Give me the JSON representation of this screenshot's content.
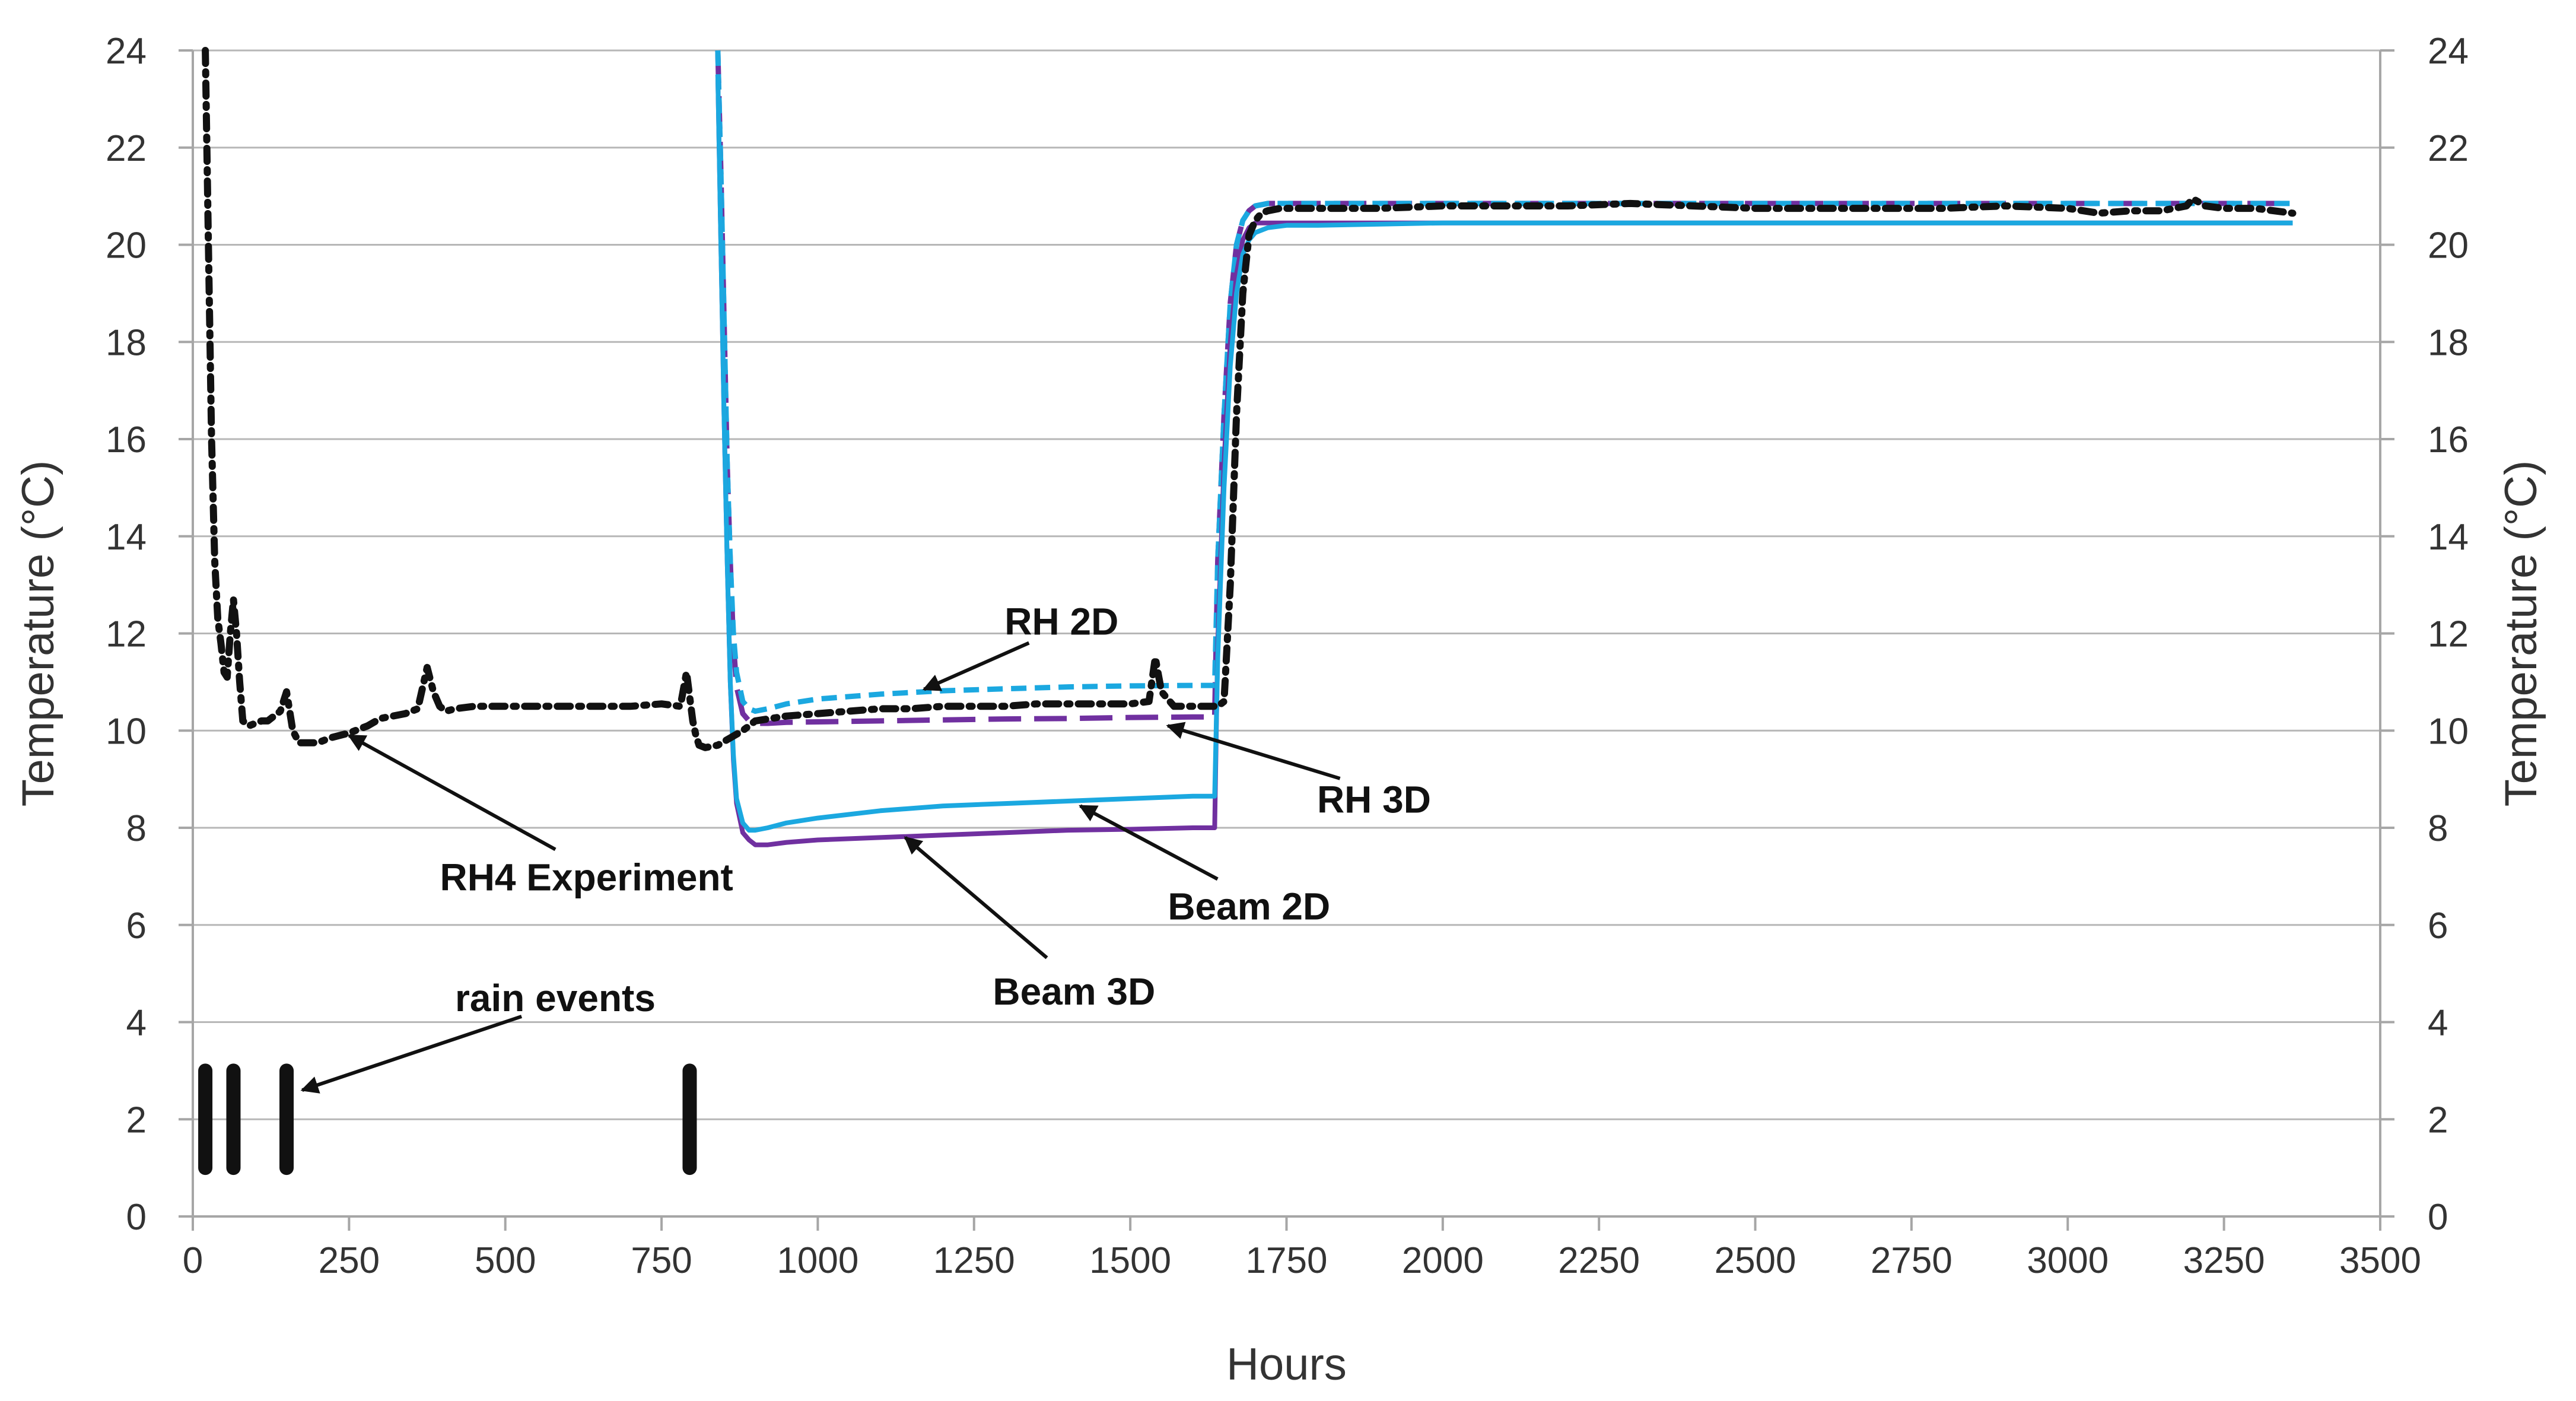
{
  "chart_data": {
    "type": "line",
    "title": "",
    "xlabel": "Hours",
    "ylabel_left": "Temperature (°C)",
    "ylabel_right": "Temperature (°C)",
    "xlim": [
      0,
      3500
    ],
    "ylim": [
      0,
      24
    ],
    "x_ticks": [
      0,
      250,
      500,
      750,
      1000,
      1250,
      1500,
      1750,
      2000,
      2250,
      2500,
      2750,
      3000,
      3250,
      3500
    ],
    "y_ticks": [
      0,
      2,
      4,
      6,
      8,
      10,
      12,
      14,
      16,
      18,
      20,
      22,
      24
    ],
    "grid": "horizontal",
    "colors": {
      "experiment": "#111111",
      "beam2d": "#1ba8e0",
      "beam3d": "#7030a0",
      "rh2d": "#1ba8e0",
      "rh3d": "#7030a0",
      "grid": "#b7b7b7",
      "axis": "#a6a6a6",
      "annotation": "#111111"
    },
    "series": [
      {
        "name": "RH4 Experiment",
        "key": "experiment",
        "style": "dashed-dotted",
        "x": [
          20,
          25,
          30,
          35,
          40,
          45,
          50,
          55,
          60,
          65,
          70,
          75,
          80,
          90,
          100,
          110,
          120,
          130,
          140,
          150,
          155,
          160,
          170,
          180,
          200,
          220,
          250,
          280,
          300,
          320,
          340,
          360,
          375,
          385,
          395,
          405,
          420,
          450,
          500,
          550,
          600,
          650,
          700,
          750,
          780,
          790,
          800,
          805,
          810,
          820,
          840,
          860,
          880,
          900,
          950,
          1000,
          1050,
          1100,
          1150,
          1200,
          1250,
          1300,
          1350,
          1400,
          1450,
          1500,
          1530,
          1540,
          1550,
          1570,
          1600,
          1630,
          1640,
          1650,
          1660,
          1670,
          1680,
          1690,
          1700,
          1710,
          1720,
          1740,
          1780,
          1800,
          1900,
          2000,
          2100,
          2200,
          2300,
          2400,
          2500,
          2600,
          2700,
          2800,
          2900,
          3000,
          3050,
          3100,
          3150,
          3190,
          3200,
          3220,
          3250,
          3300,
          3360
        ],
        "y": [
          24,
          20,
          16,
          13.5,
          12.3,
          11.8,
          11.2,
          11.1,
          12.0,
          12.7,
          12.0,
          11.0,
          10.2,
          10.1,
          10.15,
          10.2,
          10.2,
          10.3,
          10.4,
          10.8,
          10.4,
          10.0,
          9.75,
          9.75,
          9.75,
          9.85,
          9.95,
          10.1,
          10.25,
          10.3,
          10.35,
          10.45,
          11.3,
          10.8,
          10.5,
          10.4,
          10.45,
          10.5,
          10.5,
          10.5,
          10.5,
          10.5,
          10.5,
          10.55,
          10.5,
          11.2,
          10.2,
          9.9,
          9.7,
          9.65,
          9.7,
          9.85,
          10.0,
          10.2,
          10.3,
          10.35,
          10.4,
          10.45,
          10.45,
          10.5,
          10.5,
          10.5,
          10.55,
          10.55,
          10.55,
          10.55,
          10.6,
          11.5,
          10.8,
          10.5,
          10.5,
          10.5,
          10.5,
          10.6,
          13.0,
          16.5,
          19.0,
          20.2,
          20.5,
          20.65,
          20.7,
          20.75,
          20.75,
          20.75,
          20.75,
          20.8,
          20.8,
          20.8,
          20.85,
          20.8,
          20.75,
          20.75,
          20.75,
          20.75,
          20.8,
          20.75,
          20.65,
          20.7,
          20.7,
          20.8,
          20.95,
          20.8,
          20.75,
          20.75,
          20.65
        ]
      },
      {
        "name": "Beam 2D",
        "key": "beam2d",
        "style": "solid",
        "x": [
          840,
          845,
          850,
          855,
          860,
          865,
          870,
          880,
          890,
          900,
          920,
          950,
          1000,
          1100,
          1200,
          1300,
          1400,
          1500,
          1600,
          1635,
          1640,
          1650,
          1660,
          1670,
          1680,
          1690,
          1700,
          1720,
          1750,
          1800,
          2000,
          2500,
          3000,
          3360
        ],
        "y": [
          23.5,
          20,
          16.5,
          13.5,
          11.0,
          9.5,
          8.6,
          8.1,
          7.95,
          7.95,
          8.0,
          8.1,
          8.2,
          8.35,
          8.45,
          8.5,
          8.55,
          8.6,
          8.65,
          8.65,
          11.5,
          15.0,
          17.5,
          19.0,
          19.8,
          20.1,
          20.25,
          20.35,
          20.4,
          20.4,
          20.45,
          20.45,
          20.45,
          20.45
        ]
      },
      {
        "name": "Beam 3D",
        "key": "beam3d",
        "style": "solid",
        "x": [
          840,
          845,
          850,
          855,
          860,
          865,
          870,
          880,
          890,
          900,
          920,
          950,
          1000,
          1100,
          1200,
          1300,
          1400,
          1500,
          1600,
          1635,
          1640,
          1650,
          1660,
          1670,
          1680,
          1690,
          1700,
          1720,
          1750,
          1800,
          2000,
          2500,
          3000,
          3360
        ],
        "y": [
          23.5,
          20,
          16.5,
          13.5,
          11.0,
          9.4,
          8.5,
          7.9,
          7.75,
          7.65,
          7.65,
          7.7,
          7.75,
          7.8,
          7.85,
          7.9,
          7.95,
          7.97,
          8.0,
          8.0,
          11.8,
          15.5,
          18.0,
          19.4,
          20.1,
          20.35,
          20.45,
          20.45,
          20.45,
          20.45,
          20.45,
          20.45,
          20.45,
          20.45
        ]
      },
      {
        "name": "RH 2D",
        "key": "rh2d",
        "style": "dashed",
        "x": [
          840,
          845,
          850,
          855,
          860,
          865,
          870,
          880,
          890,
          900,
          920,
          950,
          1000,
          1100,
          1200,
          1300,
          1400,
          1500,
          1600,
          1635,
          1640,
          1650,
          1660,
          1670,
          1680,
          1690,
          1700,
          1720,
          1750,
          1800,
          2000,
          2500,
          3000,
          3360
        ],
        "y": [
          24,
          21.5,
          18.5,
          15.5,
          13.5,
          12.0,
          11.2,
          10.6,
          10.45,
          10.4,
          10.45,
          10.55,
          10.65,
          10.75,
          10.82,
          10.86,
          10.9,
          10.92,
          10.93,
          10.93,
          13.5,
          16.5,
          18.8,
          20.0,
          20.5,
          20.7,
          20.8,
          20.85,
          20.85,
          20.85,
          20.85,
          20.85,
          20.85,
          20.85
        ]
      },
      {
        "name": "RH 3D",
        "key": "rh3d",
        "style": "long-dash",
        "x": [
          840,
          845,
          850,
          855,
          860,
          865,
          870,
          880,
          890,
          900,
          920,
          950,
          1000,
          1100,
          1200,
          1300,
          1400,
          1500,
          1600,
          1635,
          1640,
          1650,
          1660,
          1670,
          1680,
          1690,
          1700,
          1720,
          1750,
          1800,
          2000,
          2500,
          3000,
          3360
        ],
        "y": [
          24,
          21.5,
          18.5,
          15.5,
          13.5,
          11.8,
          10.9,
          10.35,
          10.2,
          10.15,
          10.15,
          10.17,
          10.18,
          10.2,
          10.22,
          10.24,
          10.25,
          10.27,
          10.28,
          10.28,
          13.5,
          16.5,
          18.8,
          20.0,
          20.5,
          20.7,
          20.8,
          20.85,
          20.85,
          20.85,
          20.85,
          20.85,
          20.85,
          20.85
        ]
      }
    ],
    "rain_events": {
      "label": "rain events",
      "hours": [
        20,
        65,
        150,
        795
      ],
      "y_range": [
        1,
        3
      ]
    },
    "annotations": [
      {
        "key": "rh2d",
        "text": "RH 2D",
        "points_to": {
          "x": 1170,
          "y": 10.85
        },
        "label_at": {
          "x": 1390,
          "y": 12.1
        }
      },
      {
        "key": "rh3d",
        "text": "RH 3D",
        "points_to": {
          "x": 1560,
          "y": 10.1
        },
        "label_at": {
          "x": 1890,
          "y": 8.8
        }
      },
      {
        "key": "beam2d",
        "text": "Beam 2D",
        "points_to": {
          "x": 1420,
          "y": 8.45
        },
        "label_at": {
          "x": 1690,
          "y": 6.6
        }
      },
      {
        "key": "beam3d",
        "text": "Beam 3D",
        "points_to": {
          "x": 1140,
          "y": 7.8
        },
        "label_at": {
          "x": 1410,
          "y": 4.85
        }
      },
      {
        "key": "experiment",
        "text": "RH4 Experiment",
        "points_to": {
          "x": 250,
          "y": 9.9
        },
        "label_at": {
          "x": 630,
          "y": 7.2
        }
      },
      {
        "key": "rain",
        "text": "rain events",
        "points_to": {
          "x": 175,
          "y": 2.6
        },
        "label_at": {
          "x": 580,
          "y": 4.35
        }
      }
    ]
  }
}
